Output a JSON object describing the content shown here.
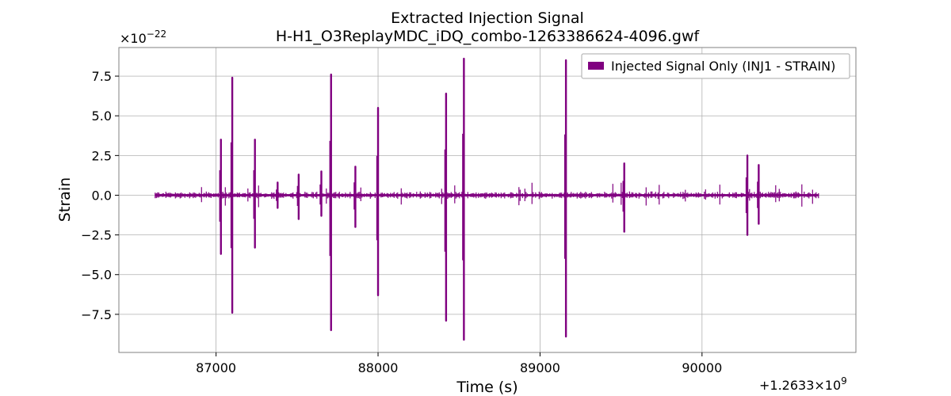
{
  "chart_data": {
    "type": "line",
    "title": "Extracted Injection Signal",
    "subtitle": "H-H1_O3ReplayMDC_iDQ_combo-1263386624-4096.gwf",
    "xlabel": "Time (s)",
    "ylabel": "Strain",
    "x_offset_label": "+1.2633×10",
    "x_offset_exp": "9",
    "y_scale_label": "×10",
    "y_scale_exp": "−22",
    "xlim": [
      86400,
      90950
    ],
    "ylim": [
      -9.9,
      9.3
    ],
    "xticks": [
      87000,
      88000,
      89000,
      90000
    ],
    "xtick_labels": [
      "87000",
      "88000",
      "89000",
      "90000"
    ],
    "yticks": [
      7.5,
      5.0,
      2.5,
      0.0,
      -2.5,
      -5.0,
      -7.5
    ],
    "ytick_labels": [
      "7.5",
      "5.0",
      "2.5",
      "0.0",
      "−2.5",
      "−5.0",
      "−7.5"
    ],
    "grid": true,
    "legend_position": "top-right",
    "data_range_x": [
      86624,
      90720
    ],
    "baseline_noise_amplitude": 0.25,
    "series": [
      {
        "name": "Injected Signal Only (INJ1 - STRAIN)",
        "color": "#800080",
        "injections": [
          {
            "x": 87030,
            "ymax": 3.5,
            "ymin": -3.7
          },
          {
            "x": 87100,
            "ymax": 7.4,
            "ymin": -7.4
          },
          {
            "x": 87240,
            "ymax": 3.5,
            "ymin": -3.3
          },
          {
            "x": 87380,
            "ymax": 0.8,
            "ymin": -0.8
          },
          {
            "x": 87510,
            "ymax": 1.3,
            "ymin": -1.5
          },
          {
            "x": 87650,
            "ymax": 1.5,
            "ymin": -1.3
          },
          {
            "x": 87710,
            "ymax": 7.6,
            "ymin": -8.5
          },
          {
            "x": 87860,
            "ymax": 1.8,
            "ymin": -2.0
          },
          {
            "x": 88000,
            "ymax": 5.5,
            "ymin": -6.3
          },
          {
            "x": 88420,
            "ymax": 6.4,
            "ymin": -7.9
          },
          {
            "x": 88530,
            "ymax": 8.6,
            "ymin": -9.1
          },
          {
            "x": 89160,
            "ymax": 8.5,
            "ymin": -8.9
          },
          {
            "x": 89520,
            "ymax": 2.0,
            "ymin": -2.3
          },
          {
            "x": 90280,
            "ymax": 2.5,
            "ymin": -2.5
          },
          {
            "x": 90350,
            "ymax": 1.9,
            "ymin": -1.8
          }
        ]
      }
    ]
  }
}
